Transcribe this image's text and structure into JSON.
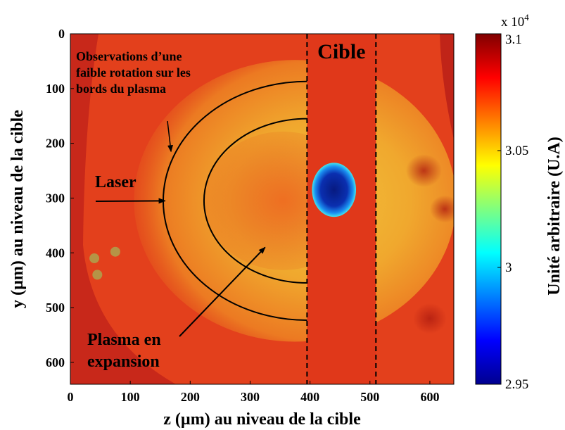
{
  "chart_data": {
    "type": "heatmap",
    "title": "",
    "xlabel": "z (µm) au niveau de la cible",
    "ylabel": "y (µm) au niveau de la cible",
    "xlim": [
      0,
      640
    ],
    "ylim": [
      640,
      0
    ],
    "x_ticks": [
      0,
      100,
      200,
      300,
      400,
      500,
      600
    ],
    "y_ticks": [
      0,
      100,
      200,
      300,
      400,
      500,
      600
    ],
    "x_tick_labels": [
      "0",
      "100",
      "200",
      "300",
      "400",
      "500",
      "600"
    ],
    "y_tick_labels": [
      "0",
      "100",
      "200",
      "300",
      "400",
      "500",
      "600"
    ],
    "colorbar": {
      "label": "Unité arbitraire (U.A)",
      "range": [
        2.95,
        3.1
      ],
      "multiplier_label": "x 10",
      "multiplier_exponent": "4",
      "ticks": [
        2.95,
        3,
        3.05,
        3.1
      ],
      "tick_labels": [
        "2.95",
        "3",
        "3.05",
        "3.1"
      ],
      "colormap": "jet"
    },
    "regions": {
      "target_boundaries_z": [
        395,
        510
      ],
      "target_label": "Cible",
      "plasma_arcs": [
        {
          "center_z": 395,
          "center_y": 305,
          "radius_z": 240,
          "radius_y": 218
        },
        {
          "center_z": 395,
          "center_y": 305,
          "radius_z": 172,
          "radius_y": 150
        }
      ],
      "dark_spot": {
        "center_z": 440,
        "center_y": 285,
        "radius_z": 32,
        "radius_y": 45
      }
    },
    "annotations": [
      {
        "lines": [
          "Observations d’une",
          "faible rotation sur les",
          "bords du plasma"
        ],
        "arrow_to": [
          168,
          215
        ]
      },
      {
        "lines": [
          "Laser"
        ],
        "arrow_to": [
          158,
          305
        ]
      },
      {
        "lines": [
          "Plasma en",
          "expansion"
        ],
        "arrow_to": [
          325,
          390
        ]
      }
    ]
  }
}
